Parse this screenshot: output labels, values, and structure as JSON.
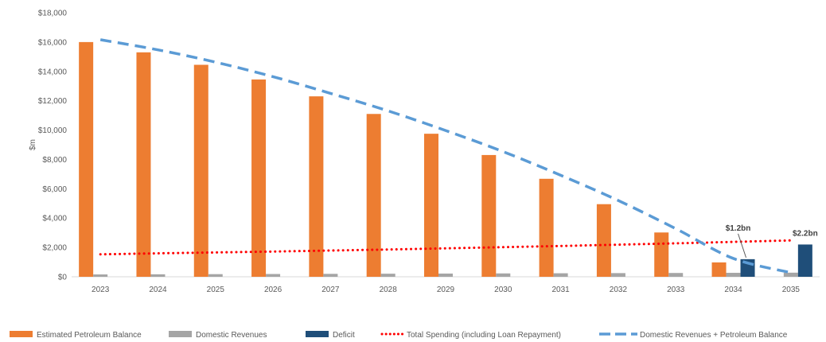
{
  "chart_data": {
    "type": "bar",
    "title": "",
    "xlabel": "",
    "ylabel": "$m",
    "ylim": [
      0,
      18000
    ],
    "yticks": [
      0,
      2000,
      4000,
      6000,
      8000,
      10000,
      12000,
      14000,
      16000,
      18000
    ],
    "ytick_labels": [
      "$0",
      "$2,000",
      "$4,000",
      "$6,000",
      "$8,000",
      "$10,000",
      "$12,000",
      "$14,000",
      "$16,000",
      "$18,000"
    ],
    "categories": [
      "2023",
      "2024",
      "2025",
      "2026",
      "2027",
      "2028",
      "2029",
      "2030",
      "2031",
      "2032",
      "2033",
      "2034",
      "2035"
    ],
    "grid": false,
    "legend_position": "bottom",
    "series": [
      {
        "name": "Estimated Petroleum Balance",
        "kind": "bar",
        "color": "#ED7D31",
        "values": [
          16000,
          15300,
          14450,
          13450,
          12300,
          11100,
          9750,
          8300,
          6680,
          4950,
          3020,
          980,
          null
        ]
      },
      {
        "name": "Domestic Revenues",
        "kind": "bar",
        "color": "#A5A5A5",
        "values": [
          160,
          170,
          180,
          190,
          200,
          210,
          220,
          230,
          240,
          250,
          260,
          270,
          280
        ]
      },
      {
        "name": "Deficit",
        "kind": "bar",
        "color": "#1F4E79",
        "values": [
          null,
          null,
          null,
          null,
          null,
          null,
          null,
          null,
          null,
          null,
          null,
          1200,
          2200
        ]
      },
      {
        "name": "Total Spending (including Loan Repayment)",
        "kind": "line",
        "style": "dotted",
        "color": "#FF0000",
        "values": [
          1530,
          1600,
          1660,
          1720,
          1790,
          1860,
          1940,
          2020,
          2100,
          2190,
          2280,
          2380,
          2480
        ]
      },
      {
        "name": "Domestic Revenues + Petroleum Balance",
        "kind": "line",
        "style": "dashed",
        "color": "#5B9BD5",
        "values": [
          16160,
          15470,
          14630,
          13640,
          12500,
          11310,
          9970,
          8530,
          6920,
          5200,
          3280,
          1250,
          280
        ]
      }
    ],
    "annotations": [
      {
        "text": "$1.2bn",
        "category": "2034",
        "value": 1200
      },
      {
        "text": "$2.2bn",
        "category": "2035",
        "value": 2200
      }
    ]
  }
}
